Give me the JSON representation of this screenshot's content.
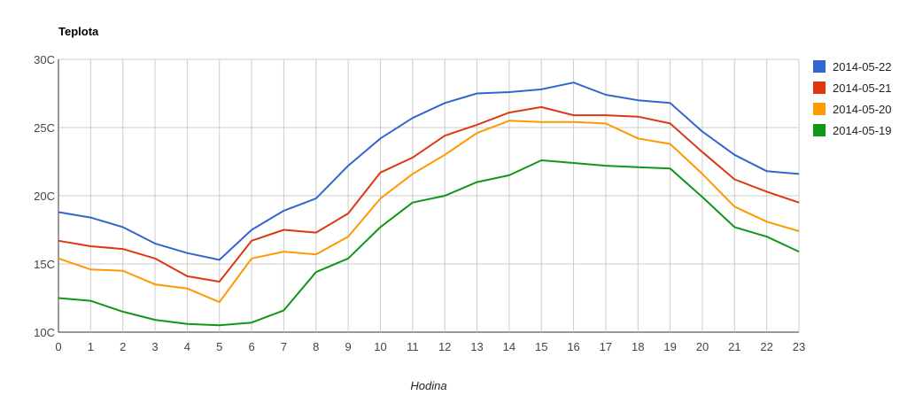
{
  "chart_data": {
    "type": "line",
    "title": "Teplota",
    "xlabel": "Hodina",
    "ylabel": "",
    "x": [
      0,
      1,
      2,
      3,
      4,
      5,
      6,
      7,
      8,
      9,
      10,
      11,
      12,
      13,
      14,
      15,
      16,
      17,
      18,
      19,
      20,
      21,
      22,
      23
    ],
    "ylim": [
      10,
      30
    ],
    "yticks": [
      10,
      15,
      20,
      25,
      30
    ],
    "ytick_labels": [
      "10C",
      "15C",
      "20C",
      "25C",
      "30C"
    ],
    "grid": true,
    "legend_position": "right",
    "series": [
      {
        "name": "2014-05-22",
        "color": "#3366cc",
        "values": [
          18.8,
          18.4,
          17.7,
          16.5,
          15.8,
          15.3,
          17.5,
          18.9,
          19.8,
          22.2,
          24.2,
          25.7,
          26.8,
          27.5,
          27.6,
          27.8,
          28.3,
          27.4,
          27.0,
          26.8,
          24.7,
          23.0,
          21.8,
          21.6
        ]
      },
      {
        "name": "2014-05-21",
        "color": "#dc3912",
        "values": [
          16.7,
          16.3,
          16.1,
          15.4,
          14.1,
          13.7,
          16.7,
          17.5,
          17.3,
          18.7,
          21.7,
          22.8,
          24.4,
          25.2,
          26.1,
          26.5,
          25.9,
          25.9,
          25.8,
          25.3,
          23.2,
          21.2,
          20.3,
          19.5
        ]
      },
      {
        "name": "2014-05-20",
        "color": "#ff9900",
        "values": [
          15.4,
          14.6,
          14.5,
          13.5,
          13.2,
          12.2,
          15.4,
          15.9,
          15.7,
          17.0,
          19.8,
          21.6,
          23.0,
          24.6,
          25.5,
          25.4,
          25.4,
          25.3,
          24.2,
          23.8,
          21.6,
          19.2,
          18.1,
          17.4
        ]
      },
      {
        "name": "2014-05-19",
        "color": "#109618",
        "values": [
          12.5,
          12.3,
          11.5,
          10.9,
          10.6,
          10.5,
          10.7,
          11.6,
          14.4,
          15.4,
          17.7,
          19.5,
          20.0,
          21.0,
          21.5,
          22.6,
          22.4,
          22.2,
          22.1,
          22.0,
          19.9,
          17.7,
          17.0,
          15.9
        ]
      }
    ]
  }
}
